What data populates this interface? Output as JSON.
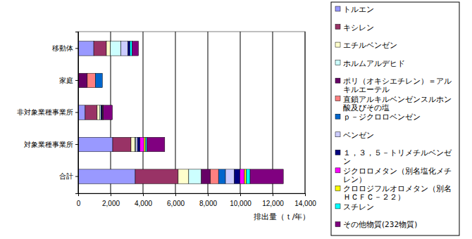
{
  "chart_data": {
    "type": "bar",
    "orientation": "horizontal",
    "stacked": true,
    "grid": true,
    "legend": "right",
    "x_label": "排出量（ｔ/年）",
    "categories": [
      "移動体",
      "家庭",
      "非対象業種事業所",
      "対象業種事業所",
      "合計"
    ],
    "xlim": [
      0,
      14000
    ],
    "xticks": [
      0,
      {
        "value": 2000,
        "label": "2,000"
      },
      {
        "value": 4000,
        "label": "4,000"
      },
      {
        "value": 6000,
        "label": "6,000"
      },
      {
        "value": 8000,
        "label": "8,000"
      },
      {
        "value": 10000,
        "label": "10,000"
      },
      {
        "value": 12000,
        "label": "12,000"
      },
      {
        "value": 14000,
        "label": "14,000"
      }
    ],
    "series": [
      {
        "name": "トルエン",
        "color": "#9999ff",
        "values": [
          960,
          0,
          430,
          2130,
          3520
        ]
      },
      {
        "name": "キシレン",
        "color": "#993366",
        "values": [
          780,
          0,
          740,
          1130,
          2650
        ]
      },
      {
        "name": "エチルベンゼン",
        "color": "#ffffcc",
        "values": [
          250,
          0,
          150,
          250,
          650
        ]
      },
      {
        "name": "ホルムアルデヒド",
        "color": "#ccffff",
        "values": [
          650,
          0,
          80,
          50,
          780
        ]
      },
      {
        "name": "ポリ（オキシエチレン）＝アルキルエーテル",
        "color": "#660066",
        "values": [
          0,
          560,
          0,
          0,
          560
        ]
      },
      {
        "name": "直鎖アルキルベンゼンスルホン酸及びその塩",
        "color": "#ff8080",
        "values": [
          0,
          500,
          0,
          0,
          500
        ]
      },
      {
        "name": "ｐ－ジクロロベンゼン",
        "color": "#0066cc",
        "values": [
          0,
          430,
          0,
          0,
          430
        ]
      },
      {
        "name": "ベンゼン",
        "color": "#ccccff",
        "values": [
          430,
          0,
          20,
          100,
          550
        ]
      },
      {
        "name": "１，３，５－トリメチルベンゼン",
        "color": "#000080",
        "values": [
          130,
          0,
          60,
          150,
          340
        ]
      },
      {
        "name": "ジクロロメタン（別名塩化メチレン）",
        "color": "#ff00ff",
        "values": [
          0,
          0,
          30,
          250,
          280
        ]
      },
      {
        "name": "クロロジフルオロメタン（別名ＨＣＦＣ－２２）",
        "color": "#ffff00",
        "values": [
          0,
          0,
          20,
          100,
          120
        ]
      },
      {
        "name": "スチレン",
        "color": "#00ffff",
        "values": [
          130,
          0,
          20,
          80,
          230
        ]
      },
      {
        "name": "その他物質(232物質)",
        "color": "#800080",
        "values": [
          390,
          0,
          560,
          1100,
          2050
        ]
      }
    ]
  }
}
